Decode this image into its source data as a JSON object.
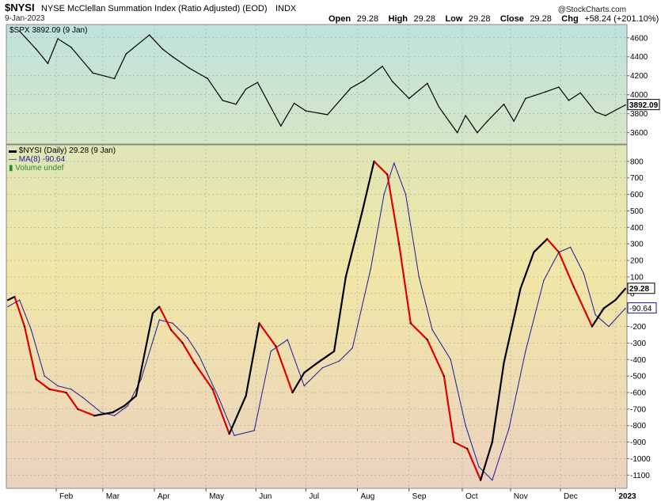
{
  "header": {
    "symbol": "$NYSI",
    "description": "NYSE McClellan Summation Index (Ratio Adjusted) (EOD)",
    "exchange": "INDX",
    "date": "9-Jan-2023",
    "watermark": "@StockCharts.com",
    "open_label": "Open",
    "open": "29.28",
    "high_label": "High",
    "high": "29.28",
    "low_label": "Low",
    "low": "29.28",
    "close_label": "Close",
    "close": "29.28",
    "chg_label": "Chg",
    "chg": "+58.24 (+201.10%)"
  },
  "colors": {
    "price_line": "#000000",
    "nysi_up": "#000000",
    "nysi_down": "#e00000",
    "ma_line": "#1a1a9a",
    "volume_label": "#2a8a2a"
  },
  "chart_data": [
    {
      "type": "line",
      "legend": "$SPX 3892.09 (9 Jan)",
      "last_value_label": "3892.09",
      "ylim": [
        3480,
        4740
      ],
      "yticks": [
        3600,
        3800,
        4000,
        4200,
        4400,
        4600
      ],
      "x_months": [
        "Feb",
        "Mar",
        "Apr",
        "May",
        "Jun",
        "Jul",
        "Aug",
        "Sep",
        "Oct",
        "Nov",
        "Dec",
        "2023"
      ],
      "series": [
        {
          "name": "$SPX",
          "x": [
            "2022-01-10",
            "2022-01-20",
            "2022-01-27",
            "2022-02-02",
            "2022-02-10",
            "2022-02-23",
            "2022-03-08",
            "2022-03-15",
            "2022-03-29",
            "2022-04-06",
            "2022-04-12",
            "2022-04-22",
            "2022-05-03",
            "2022-05-12",
            "2022-05-20",
            "2022-05-26",
            "2022-06-02",
            "2022-06-16",
            "2022-06-24",
            "2022-07-01",
            "2022-07-14",
            "2022-07-28",
            "2022-08-05",
            "2022-08-16",
            "2022-08-22",
            "2022-09-01",
            "2022-09-12",
            "2022-09-19",
            "2022-09-30",
            "2022-10-05",
            "2022-10-12",
            "2022-10-18",
            "2022-10-28",
            "2022-11-03",
            "2022-11-10",
            "2022-11-22",
            "2022-11-30",
            "2022-12-06",
            "2022-12-13",
            "2022-12-22",
            "2022-12-28",
            "2023-01-09"
          ],
          "values": [
            4670,
            4480,
            4330,
            4590,
            4500,
            4230,
            4170,
            4430,
            4630,
            4480,
            4400,
            4280,
            4170,
            3940,
            3900,
            4060,
            4130,
            3670,
            3910,
            3830,
            3790,
            4070,
            4150,
            4300,
            4140,
            3960,
            4120,
            3870,
            3600,
            3780,
            3600,
            3720,
            3900,
            3720,
            3960,
            4030,
            4080,
            3940,
            4020,
            3820,
            3780,
            3892
          ]
        }
      ]
    },
    {
      "type": "line",
      "legend_nysi": "$NYSI (Daily) 29.28 (9 Jan)",
      "legend_ma": "MA(8) -90.64",
      "legend_volume": "Volume undef",
      "last_value_label": "29.28",
      "ma_last_label": "-90.64",
      "ylim": [
        -1180,
        900
      ],
      "yticks": [
        800,
        700,
        600,
        500,
        400,
        300,
        200,
        100,
        0,
        -100,
        -200,
        -300,
        -400,
        -500,
        -600,
        -700,
        -800,
        -900,
        -1000,
        -1100
      ],
      "x_months": [
        "Feb",
        "Mar",
        "Apr",
        "May",
        "Jun",
        "Jul",
        "Aug",
        "Sep",
        "Oct",
        "Nov",
        "Dec",
        "2023"
      ],
      "series": [
        {
          "name": "$NYSI (Daily)",
          "x": [
            "2022-01-03",
            "2022-01-07",
            "2022-01-13",
            "2022-01-20",
            "2022-01-28",
            "2022-02-07",
            "2022-02-14",
            "2022-02-24",
            "2022-03-07",
            "2022-03-14",
            "2022-03-21",
            "2022-03-31",
            "2022-04-04",
            "2022-04-11",
            "2022-04-18",
            "2022-04-25",
            "2022-05-06",
            "2022-05-16",
            "2022-05-26",
            "2022-06-03",
            "2022-06-13",
            "2022-06-23",
            "2022-06-30",
            "2022-07-08",
            "2022-07-18",
            "2022-07-25",
            "2022-08-04",
            "2022-08-11",
            "2022-08-19",
            "2022-08-26",
            "2022-09-02",
            "2022-09-12",
            "2022-09-22",
            "2022-09-28",
            "2022-10-06",
            "2022-10-14",
            "2022-10-21",
            "2022-10-28",
            "2022-11-07",
            "2022-11-15",
            "2022-11-23",
            "2022-11-30",
            "2022-12-09",
            "2022-12-20",
            "2022-12-27",
            "2023-01-03",
            "2023-01-09"
          ],
          "values": [
            -40,
            -20,
            -200,
            -520,
            -580,
            -600,
            -700,
            -740,
            -720,
            -680,
            -620,
            -120,
            -80,
            -220,
            -300,
            -420,
            -580,
            -850,
            -620,
            -180,
            -320,
            -600,
            -480,
            -420,
            -350,
            100,
            500,
            800,
            720,
            300,
            -180,
            -280,
            -500,
            -900,
            -940,
            -1130,
            -900,
            -420,
            30,
            250,
            330,
            250,
            40,
            -200,
            -90,
            -40,
            29
          ]
        },
        {
          "name": "MA(8)",
          "x": [
            "2022-01-03",
            "2022-01-10",
            "2022-01-17",
            "2022-01-25",
            "2022-02-02",
            "2022-02-10",
            "2022-02-17",
            "2022-02-28",
            "2022-03-08",
            "2022-03-16",
            "2022-03-24",
            "2022-04-04",
            "2022-04-12",
            "2022-04-21",
            "2022-04-28",
            "2022-05-10",
            "2022-05-19",
            "2022-05-31",
            "2022-06-10",
            "2022-06-20",
            "2022-06-30",
            "2022-07-11",
            "2022-07-21",
            "2022-07-29",
            "2022-08-09",
            "2022-08-17",
            "2022-08-23",
            "2022-08-30",
            "2022-09-07",
            "2022-09-15",
            "2022-09-26",
            "2022-10-05",
            "2022-10-13",
            "2022-10-21",
            "2022-10-31",
            "2022-11-10",
            "2022-11-21",
            "2022-11-30",
            "2022-12-07",
            "2022-12-15",
            "2022-12-22",
            "2022-12-30",
            "2023-01-09"
          ],
          "values": [
            -80,
            -40,
            -220,
            -500,
            -560,
            -580,
            -630,
            -720,
            -740,
            -680,
            -520,
            -160,
            -180,
            -270,
            -380,
            -640,
            -860,
            -830,
            -350,
            -280,
            -560,
            -450,
            -410,
            -330,
            150,
            600,
            790,
            600,
            100,
            -220,
            -400,
            -800,
            -1050,
            -1130,
            -820,
            -350,
            80,
            250,
            280,
            120,
            -130,
            -200,
            -90
          ]
        }
      ]
    }
  ]
}
